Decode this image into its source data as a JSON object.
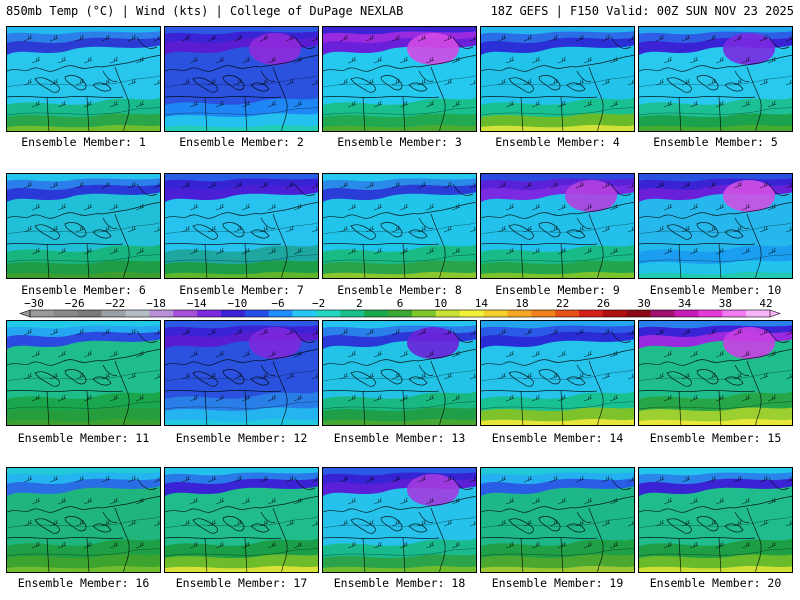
{
  "header": {
    "title_left": "850mb Temp (°C) | Wind (kts) | College of DuPage NEXLAB",
    "title_right": "18Z GEFS | F150 Valid: 00Z SUN NOV 23 2025"
  },
  "label_prefix": "Ensemble Member:",
  "members": [
    1,
    2,
    3,
    4,
    5,
    6,
    7,
    8,
    9,
    10,
    11,
    12,
    13,
    14,
    15,
    16,
    17,
    18,
    19,
    20
  ],
  "colorbar": {
    "tick_labels": [
      "-30",
      "-26",
      "-22",
      "-18",
      "-14",
      "-10",
      "-6",
      "-2",
      "2",
      "6",
      "10",
      "14",
      "18",
      "22",
      "26",
      "30",
      "34",
      "38",
      "42"
    ],
    "colors": [
      "#999999",
      "#888888",
      "#7a7a7a",
      "#9aa0a6",
      "#b4bcc4",
      "#b98fd8",
      "#a64fd8",
      "#7a2ae0",
      "#3c23d8",
      "#2450e8",
      "#1f8cff",
      "#25c8f5",
      "#20d6c0",
      "#17c08a",
      "#1aa84e",
      "#3aa832",
      "#7cc52a",
      "#c9e035",
      "#f2f23a",
      "#f5d02a",
      "#f5a623",
      "#f08019",
      "#e8501a",
      "#d42018",
      "#b01010",
      "#8c0a14",
      "#a0106e",
      "#c81ab4",
      "#e63ad6",
      "#f07af0",
      "#f8b4f8"
    ]
  },
  "panels": [
    {
      "bg": "#28c5ec",
      "top": [
        "#2b3cd4",
        "#2c7fe8",
        "#24b8f0"
      ],
      "south": [
        "#19bb8c",
        "#2aa64a",
        "#6fbd2c"
      ]
    },
    {
      "bg": "#2a52df",
      "top": [
        "#5a1cd0",
        "#3a23d4",
        "#2c59e4"
      ],
      "south": [
        "#1f86f5",
        "#24c0f0",
        "#20cfb5"
      ],
      "blob": "#8e2adc"
    },
    {
      "bg": "#25c8ee",
      "top": [
        "#6a1fd8",
        "#9a2ae0",
        "#3b23d4"
      ],
      "south": [
        "#19c08e",
        "#21a951",
        "#4cac32"
      ],
      "blob": "#d24ae6"
    },
    {
      "bg": "#22c3ea",
      "top": [
        "#2a2fd6",
        "#2a6de6",
        "#25b5ee"
      ],
      "south": [
        "#19c090",
        "#6abb2c",
        "#d3e238"
      ]
    },
    {
      "bg": "#28c8ef",
      "top": [
        "#3a23d4",
        "#2f5ee6",
        "#24aaf0"
      ],
      "south": [
        "#1dbf94",
        "#1aa24e",
        "#48ab31"
      ],
      "blob": "#7a2ae0"
    },
    {
      "bg": "#22bfd8",
      "top": [
        "#2a38d8",
        "#2a7fea",
        "#24c4ee"
      ],
      "south": [
        "#18b67e",
        "#1e9c46",
        "#3d9e30"
      ]
    },
    {
      "bg": "#27c2ee",
      "top": [
        "#4a1fd6",
        "#3523d4",
        "#2a5de6"
      ],
      "south": [
        "#1ea7a0",
        "#1c9e48",
        "#5fb52c"
      ]
    },
    {
      "bg": "#22c5ea",
      "top": [
        "#2a3dd6",
        "#2a8ae8",
        "#25c8f0"
      ],
      "south": [
        "#19ba84",
        "#2aa44a",
        "#8cc62e"
      ]
    },
    {
      "bg": "#24c0ec",
      "top": [
        "#7a2ae0",
        "#5a22d8",
        "#2c4ae0"
      ],
      "south": [
        "#19bb88",
        "#22a54c",
        "#7cc22c"
      ],
      "blob": "#b240e0"
    },
    {
      "bg": "#26b8ec",
      "top": [
        "#6a1fd8",
        "#3a23d4",
        "#2a52e0"
      ],
      "south": [
        "#1c9ef0",
        "#22c4ee",
        "#20c9b0"
      ],
      "blob": "#d050e4"
    },
    {
      "bg": "#1fbd8c",
      "top": [
        "#2a4ae0",
        "#24a6f0",
        "#22c8e8"
      ],
      "south": [
        "#1aa64c",
        "#269e3e",
        "#3ca22f"
      ]
    },
    {
      "bg": "#2a52df",
      "top": [
        "#5a1cd0",
        "#3a23d4",
        "#2c59e4"
      ],
      "south": [
        "#2a7ee8",
        "#24b5f0",
        "#22c8e0"
      ],
      "blob": "#7c28dc"
    },
    {
      "bg": "#22c3e6",
      "top": [
        "#2a38d8",
        "#2a7fea",
        "#25c2f0"
      ],
      "south": [
        "#19b880",
        "#1f9f48",
        "#46a831"
      ],
      "blob": "#6a22d8"
    },
    {
      "bg": "#26c3ec",
      "top": [
        "#2a2dd6",
        "#2a5ae6",
        "#24a4ee"
      ],
      "south": [
        "#19c092",
        "#7ec22c",
        "#e6e63a"
      ]
    },
    {
      "bg": "#1fbd8c",
      "top": [
        "#9a2ae0",
        "#3a23d4",
        "#2a7fea"
      ],
      "south": [
        "#26a648",
        "#9ccf30",
        "#e8e83a"
      ],
      "blob": "#c840e2"
    },
    {
      "bg": "#1fb57c",
      "top": [
        "#2a6ee6",
        "#24b4f0",
        "#22c8d8"
      ],
      "south": [
        "#1f9f46",
        "#3ca32f",
        "#6fbd2c"
      ]
    },
    {
      "bg": "#20bc8c",
      "top": [
        "#3a23d4",
        "#2a79e8",
        "#24c0ee"
      ],
      "south": [
        "#1a9e48",
        "#6dbc2c",
        "#d6e238"
      ]
    },
    {
      "bg": "#26c2ec",
      "top": [
        "#5a1fd6",
        "#3523d4",
        "#2a5ae6"
      ],
      "south": [
        "#19bb8c",
        "#2aa34a",
        "#6fbd2c"
      ],
      "blob": "#a23ce0"
    },
    {
      "bg": "#1db789",
      "top": [
        "#2a5de6",
        "#24b0f0",
        "#22c8d8"
      ],
      "south": [
        "#1f9f46",
        "#4aa831",
        "#9ac830"
      ]
    },
    {
      "bg": "#20bc8e",
      "top": [
        "#3a23d4",
        "#2a85ea",
        "#24c6ee"
      ],
      "south": [
        "#1e9f46",
        "#6abb2c",
        "#cfe036"
      ]
    }
  ]
}
